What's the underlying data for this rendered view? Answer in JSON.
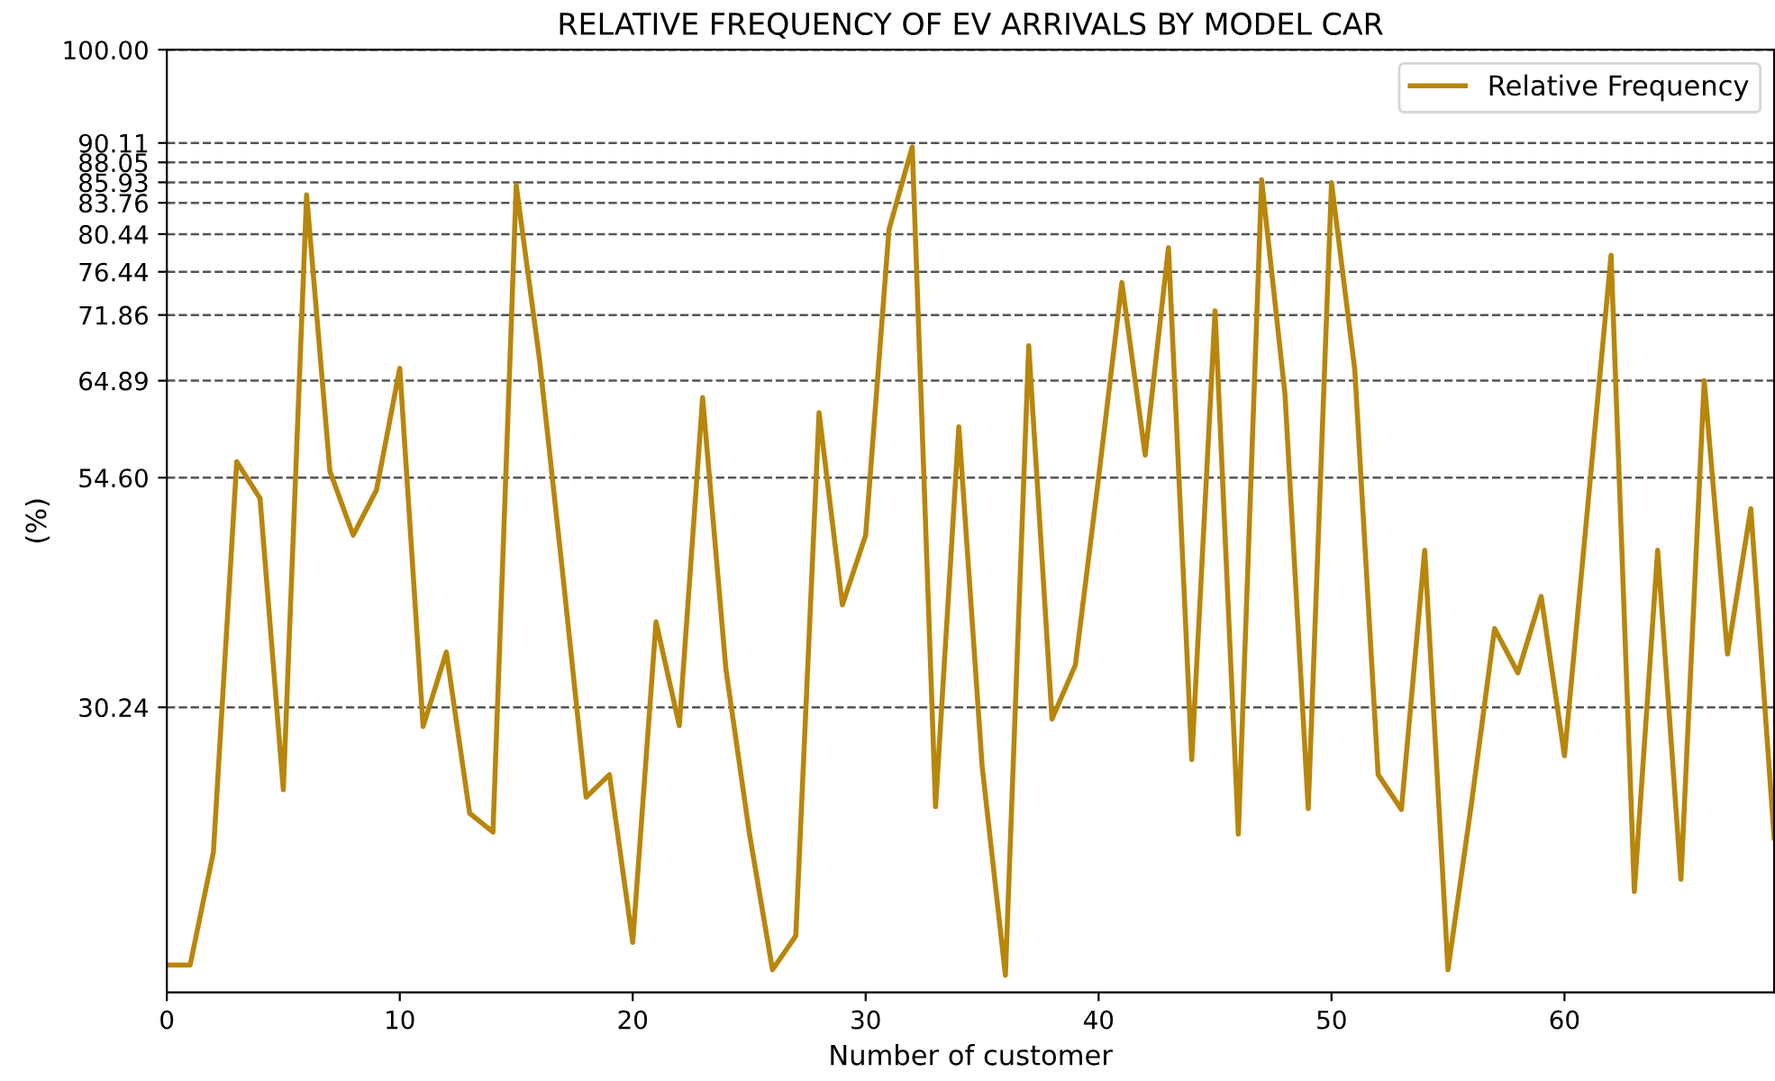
{
  "chart_data": {
    "type": "line",
    "title": "RELATIVE FREQUENCY OF EV ARRIVALS BY MODEL CAR",
    "xlabel": "Number of customer",
    "ylabel": "(%)",
    "x": [
      0,
      1,
      2,
      3,
      4,
      5,
      6,
      7,
      8,
      9,
      10,
      11,
      12,
      13,
      14,
      15,
      16,
      17,
      18,
      19,
      20,
      21,
      22,
      23,
      24,
      25,
      26,
      27,
      28,
      29,
      30,
      31,
      32,
      33,
      34,
      35,
      36,
      37,
      38,
      39,
      40,
      41,
      42,
      43,
      44,
      45,
      46,
      47,
      48,
      49,
      50,
      51,
      52,
      53,
      54,
      55,
      56,
      57,
      58,
      59,
      60,
      61,
      62,
      63,
      64,
      65,
      66,
      67,
      68,
      69
    ],
    "series": [
      {
        "name": "Relative Frequency",
        "color": "#b8860b",
        "values": [
          2.9,
          2.9,
          14.9,
          56.3,
          52.4,
          21.5,
          84.6,
          55.3,
          48.5,
          53.3,
          66.2,
          28.2,
          36.1,
          19.0,
          17.0,
          85.6,
          67.1,
          44.3,
          20.7,
          23.1,
          5.3,
          39.3,
          28.3,
          63.1,
          34.3,
          17.0,
          2.4,
          6.0,
          61.5,
          41.1,
          48.5,
          80.9,
          89.7,
          19.7,
          60.0,
          24.0,
          1.8,
          68.6,
          29.0,
          34.7,
          54.6,
          75.3,
          57.0,
          79.0,
          24.7,
          72.3,
          16.8,
          86.2,
          63.5,
          19.5,
          85.9,
          66.0,
          23.1,
          19.4,
          46.9,
          2.4,
          19.9,
          38.6,
          33.9,
          42.0,
          25.1,
          51.6,
          78.2,
          10.7,
          46.9,
          12.0,
          64.9,
          35.9,
          51.3,
          16.4
        ]
      }
    ],
    "xlim": [
      0,
      69
    ],
    "xticks": [
      0,
      10,
      20,
      30,
      40,
      50,
      60
    ],
    "ylim": [
      0,
      100
    ],
    "yticks": [
      {
        "value": 30.24,
        "label": "30.24"
      },
      {
        "value": 54.6,
        "label": "54.60"
      },
      {
        "value": 64.89,
        "label": "64.89"
      },
      {
        "value": 71.86,
        "label": "71.86"
      },
      {
        "value": 76.44,
        "label": "76.44"
      },
      {
        "value": 80.44,
        "label": "80.44"
      },
      {
        "value": 83.76,
        "label": "83.76"
      },
      {
        "value": 85.93,
        "label": "85.93"
      },
      {
        "value": 88.05,
        "label": "88.05"
      },
      {
        "value": 90.11,
        "label": "90.11"
      },
      {
        "value": 100,
        "label": "100.00"
      }
    ],
    "grid": "y",
    "legend": "top right",
    "marker": "none",
    "line_style": "solid"
  }
}
